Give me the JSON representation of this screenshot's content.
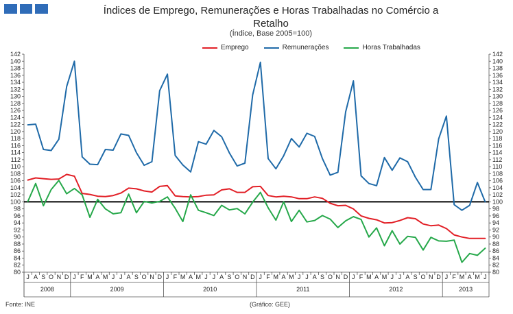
{
  "header": {
    "title_line1": "Índices de Emprego, Remunerações e Horas Trabalhadas no Comércio a",
    "title_line2": "Retalho",
    "subtitle": "(Índice, Base 2005=100)"
  },
  "footer": {
    "source": "Fonte: INE",
    "credit": "(Gráfico: GEE)"
  },
  "colors": {
    "emprego": "#e21f26",
    "remuneracoes": "#1f6aa8",
    "horas": "#26a84a",
    "baseline": "#000000",
    "logo": "#2f6cb8"
  },
  "chart_data": {
    "type": "line",
    "title": "Índices de Emprego, Remunerações e Horas Trabalhadas no Comércio a Retalho",
    "subtitle": "(Índice, Base 2005=100)",
    "xlabel": "",
    "ylabel": "",
    "ylim": [
      80,
      142
    ],
    "y_ticks": [
      80,
      82,
      84,
      86,
      88,
      90,
      92,
      94,
      96,
      98,
      100,
      102,
      104,
      106,
      108,
      110,
      112,
      114,
      116,
      118,
      120,
      122,
      124,
      126,
      128,
      130,
      132,
      134,
      136,
      138,
      140,
      142
    ],
    "reference_line": 100,
    "legend_position": "top",
    "x": [
      "J",
      "A",
      "S",
      "O",
      "N",
      "D",
      "J",
      "F",
      "M",
      "A",
      "M",
      "J",
      "J",
      "A",
      "S",
      "O",
      "N",
      "D",
      "J",
      "F",
      "M",
      "A",
      "M",
      "J",
      "J",
      "A",
      "S",
      "O",
      "N",
      "D",
      "J",
      "F",
      "M",
      "A",
      "M",
      "J",
      "J",
      "A",
      "S",
      "O",
      "N",
      "D",
      "J",
      "F",
      "M",
      "A",
      "M",
      "J",
      "J",
      "A",
      "S",
      "O",
      "N",
      "D",
      "J",
      "F",
      "M",
      "A",
      "M",
      "J"
    ],
    "years": [
      {
        "label": "2008",
        "start": 0,
        "end": 5
      },
      {
        "label": "2009",
        "start": 6,
        "end": 17
      },
      {
        "label": "2010",
        "start": 18,
        "end": 29
      },
      {
        "label": "2011",
        "start": 30,
        "end": 41
      },
      {
        "label": "2012",
        "start": 42,
        "end": 53
      },
      {
        "label": "2013",
        "start": 54,
        "end": 59
      }
    ],
    "series": [
      {
        "name": "Emprego",
        "color": "#e21f26",
        "values": [
          106.2,
          106.8,
          106.6,
          106.4,
          106.5,
          107.8,
          107.3,
          102.4,
          102.1,
          101.6,
          101.5,
          101.8,
          102.5,
          103.9,
          103.7,
          103.1,
          102.8,
          104.4,
          104.6,
          101.7,
          101.5,
          101.4,
          101.5,
          101.9,
          102.0,
          103.4,
          103.7,
          102.7,
          102.7,
          104.3,
          104.4,
          101.8,
          101.4,
          101.6,
          101.4,
          100.9,
          100.9,
          101.4,
          101.0,
          99.6,
          98.9,
          99.0,
          98.0,
          96.0,
          95.3,
          94.9,
          94.0,
          94.1,
          94.7,
          95.5,
          95.2,
          93.7,
          93.2,
          93.4,
          92.4,
          90.6,
          90.0,
          89.6,
          89.6,
          89.6
        ]
      },
      {
        "name": "Remunerações",
        "color": "#1f6aa8",
        "values": [
          121.9,
          122.1,
          114.9,
          114.6,
          117.8,
          132.8,
          140.0,
          112.8,
          110.7,
          110.6,
          114.9,
          114.7,
          119.3,
          118.9,
          114.0,
          110.4,
          111.4,
          131.6,
          136.3,
          113.2,
          110.5,
          108.5,
          117.1,
          116.4,
          120.3,
          118.5,
          113.9,
          110.2,
          111.0,
          130.4,
          139.7,
          112.3,
          109.4,
          113.1,
          118.0,
          115.6,
          119.5,
          118.6,
          112.3,
          107.6,
          108.4,
          125.6,
          134.4,
          107.4,
          105.2,
          104.6,
          112.6,
          109.0,
          112.5,
          111.4,
          107.0,
          103.5,
          103.5,
          117.9,
          124.4,
          99.2,
          97.6,
          99.0,
          105.5,
          100.0
        ]
      },
      {
        "name": "Horas Trabalhadas",
        "color": "#26a84a",
        "values": [
          100.1,
          105.2,
          98.9,
          103.5,
          106.1,
          102.3,
          103.8,
          102.0,
          95.6,
          100.7,
          98.0,
          96.6,
          96.9,
          102.2,
          96.9,
          100.1,
          99.7,
          100.1,
          101.4,
          98.2,
          94.4,
          102.0,
          97.6,
          96.9,
          96.1,
          99.0,
          97.7,
          98.1,
          96.6,
          99.9,
          102.7,
          98.3,
          94.8,
          100.0,
          94.4,
          97.6,
          94.3,
          94.7,
          96.1,
          95.1,
          92.7,
          94.6,
          95.8,
          95.0,
          90.0,
          92.6,
          87.5,
          91.8,
          88.0,
          90.2,
          89.9,
          86.3,
          89.9,
          88.9,
          88.8,
          89.1,
          82.8,
          85.3,
          84.8,
          86.8
        ]
      }
    ]
  }
}
